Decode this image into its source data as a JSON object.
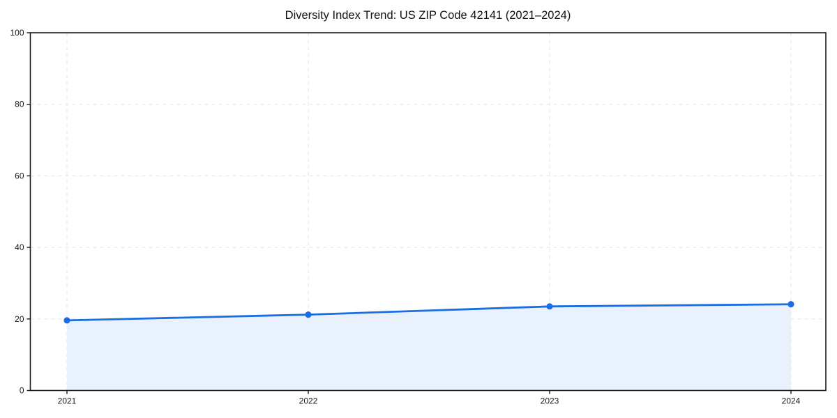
{
  "title": "Diversity Index Trend: US ZIP Code 42141 (2021–2024)",
  "chart_data": {
    "type": "area",
    "title": "Diversity Index Trend: US ZIP Code 42141 (2021–2024)",
    "x": [
      2021,
      2022,
      2023,
      2024
    ],
    "x_tick_labels": [
      "2021",
      "2022",
      "2023",
      "2024"
    ],
    "series": [
      {
        "name": "Diversity Index",
        "values": [
          19.6,
          21.2,
          23.5,
          24.1
        ]
      }
    ],
    "xlabel": "",
    "ylabel": "",
    "ylim": [
      0,
      100
    ],
    "y_ticks": [
      0,
      20,
      40,
      60,
      80,
      100
    ],
    "grid": "dashed-both-axes",
    "legend": "none",
    "marker": "circle",
    "colors": {
      "line": "#1b6ee2",
      "marker": "#1b6ee2",
      "fill": "#e9f1fc",
      "grid": "#e3e3e3",
      "spine": "#1a1a1a",
      "tick_text": "#1a1a1a",
      "background": "#ffffff"
    }
  }
}
